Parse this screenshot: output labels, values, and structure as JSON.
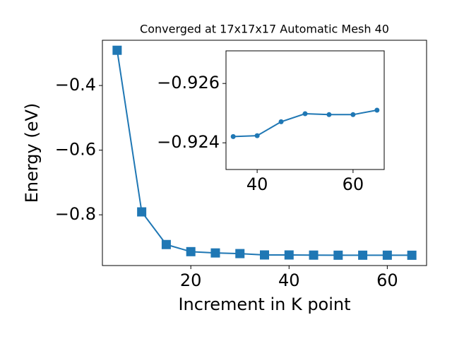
{
  "chart_data": [
    {
      "type": "line",
      "title": "Converged at 17x17x17 Automatic Mesh 40",
      "x_label": "Increment in K point",
      "y_label": "Energy (eV)",
      "marker": "square",
      "color": "#1f77b4",
      "x": [
        5,
        10,
        15,
        20,
        25,
        30,
        35,
        40,
        45,
        50,
        55,
        60,
        65
      ],
      "values": [
        -0.291,
        -0.791,
        -0.892,
        -0.914,
        -0.918,
        -0.92,
        -0.92421,
        -0.92424,
        -0.92471,
        -0.92498,
        -0.92495,
        -0.92495,
        -0.9251
      ],
      "xlim": [
        2,
        68
      ],
      "ylim": [
        -0.957,
        -0.26
      ],
      "xticks": [
        20,
        40,
        60
      ],
      "yticks": [
        {
          "value": -0.4,
          "label": "−0.4"
        },
        {
          "value": -0.6,
          "label": "−0.6"
        },
        {
          "value": -0.8,
          "label": "−0.8"
        }
      ]
    },
    {
      "type": "line",
      "marker": "circle",
      "color": "#1f77b4",
      "x": [
        35,
        40,
        45,
        50,
        55,
        60,
        65
      ],
      "values": [
        -0.92421,
        -0.92424,
        -0.92471,
        -0.92498,
        -0.92495,
        -0.92495,
        -0.9251
      ],
      "xlim": [
        33.5,
        66.5
      ],
      "ylim": [
        -0.9231,
        -0.9271
      ],
      "xticks": [
        40,
        60
      ],
      "yticks": [
        {
          "value": -0.926,
          "label": "−0.926"
        },
        {
          "value": -0.924,
          "label": "−0.924"
        }
      ]
    }
  ]
}
